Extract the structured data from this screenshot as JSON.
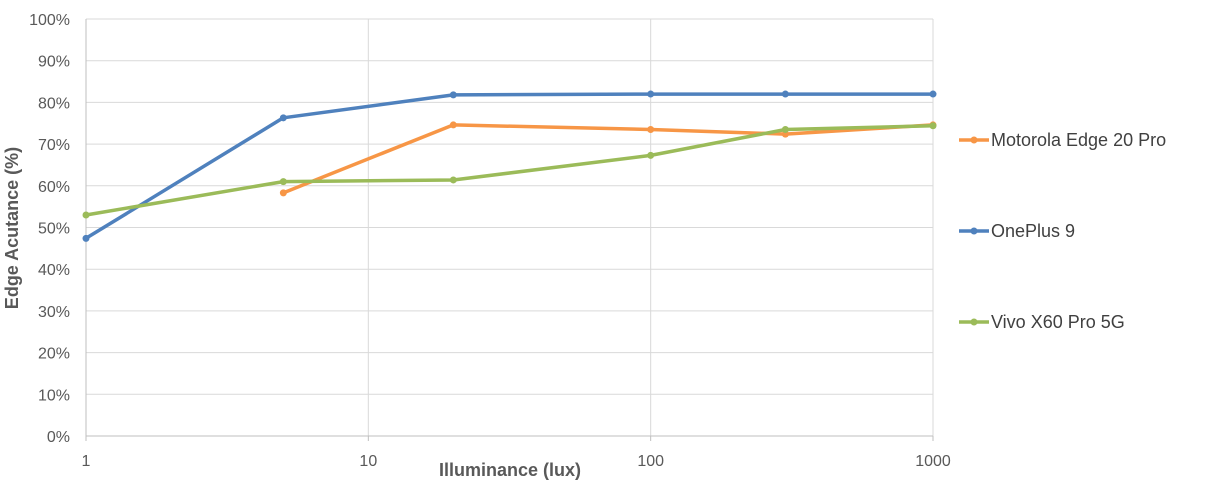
{
  "chart_data": {
    "type": "line",
    "title": "",
    "xlabel": "Illuminance (lux)",
    "ylabel": "Edge Acutance (%)",
    "x_scale": "log",
    "xlim": [
      1,
      1000
    ],
    "ylim": [
      0,
      100
    ],
    "x_ticks": [
      "1",
      "10",
      "100",
      "1000"
    ],
    "y_ticks": [
      "0%",
      "10%",
      "20%",
      "30%",
      "40%",
      "50%",
      "60%",
      "70%",
      "80%",
      "90%",
      "100%"
    ],
    "grid": true,
    "legend_position": "right",
    "series": [
      {
        "name": "Motorola Edge 20 Pro",
        "color": "#F79646",
        "points": [
          [
            5,
            58.3
          ],
          [
            20,
            74.6
          ],
          [
            100,
            73.5
          ],
          [
            300,
            72.4
          ],
          [
            1000,
            74.6
          ]
        ]
      },
      {
        "name": "OnePlus 9",
        "color": "#4F81BD",
        "points": [
          [
            1,
            47.4
          ],
          [
            5,
            76.3
          ],
          [
            20,
            81.8
          ],
          [
            100,
            82.0
          ],
          [
            300,
            82.0
          ],
          [
            1000,
            82.0
          ]
        ]
      },
      {
        "name": "Vivo X60 Pro 5G",
        "color": "#9BBB59",
        "points": [
          [
            1,
            53.0
          ],
          [
            5,
            61.0
          ],
          [
            20,
            61.4
          ],
          [
            100,
            67.3
          ],
          [
            300,
            73.5
          ],
          [
            1000,
            74.4
          ]
        ]
      }
    ]
  }
}
